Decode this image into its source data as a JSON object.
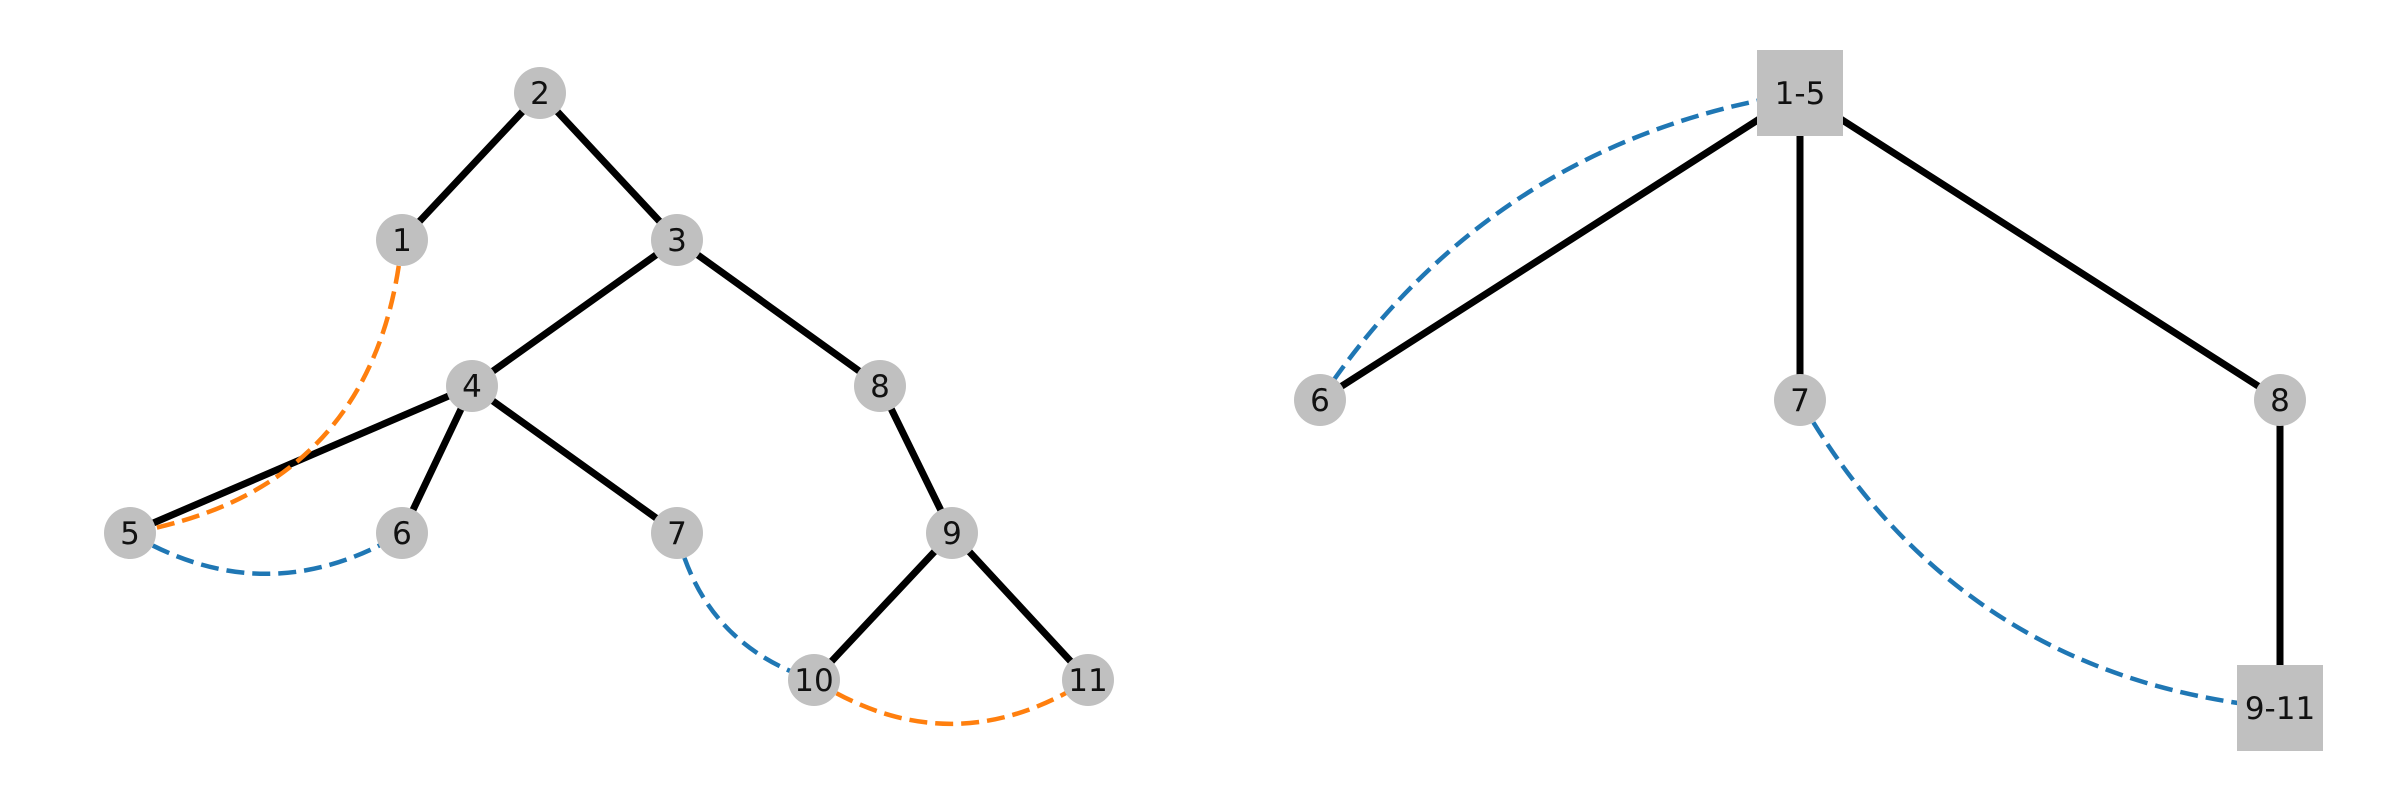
{
  "colors": {
    "node_fill": "#c0c0c0",
    "solid_edge": "#000000",
    "blue_dashed": "#1f77b4",
    "orange_dashed": "#ff7f0e"
  },
  "left_graph": {
    "nodes": [
      {
        "id": "1",
        "label": "1",
        "shape": "circle"
      },
      {
        "id": "2",
        "label": "2",
        "shape": "circle"
      },
      {
        "id": "3",
        "label": "3",
        "shape": "circle"
      },
      {
        "id": "4",
        "label": "4",
        "shape": "circle"
      },
      {
        "id": "5",
        "label": "5",
        "shape": "circle"
      },
      {
        "id": "6",
        "label": "6",
        "shape": "circle"
      },
      {
        "id": "7",
        "label": "7",
        "shape": "circle"
      },
      {
        "id": "8",
        "label": "8",
        "shape": "circle"
      },
      {
        "id": "9",
        "label": "9",
        "shape": "circle"
      },
      {
        "id": "10",
        "label": "10",
        "shape": "circle"
      },
      {
        "id": "11",
        "label": "11",
        "shape": "circle"
      }
    ],
    "edges": [
      {
        "from": "2",
        "to": "1",
        "style": "solid"
      },
      {
        "from": "2",
        "to": "3",
        "style": "solid"
      },
      {
        "from": "3",
        "to": "4",
        "style": "solid"
      },
      {
        "from": "3",
        "to": "8",
        "style": "solid"
      },
      {
        "from": "4",
        "to": "5",
        "style": "solid"
      },
      {
        "from": "4",
        "to": "6",
        "style": "solid"
      },
      {
        "from": "4",
        "to": "7",
        "style": "solid"
      },
      {
        "from": "8",
        "to": "9",
        "style": "solid"
      },
      {
        "from": "9",
        "to": "10",
        "style": "solid"
      },
      {
        "from": "9",
        "to": "11",
        "style": "solid"
      },
      {
        "from": "1",
        "to": "5",
        "style": "dashed",
        "color": "orange"
      },
      {
        "from": "5",
        "to": "6",
        "style": "dashed",
        "color": "blue"
      },
      {
        "from": "7",
        "to": "10",
        "style": "dashed",
        "color": "blue"
      },
      {
        "from": "10",
        "to": "11",
        "style": "dashed",
        "color": "orange"
      }
    ]
  },
  "right_graph": {
    "nodes": [
      {
        "id": "1-5",
        "label": "1-5",
        "shape": "square"
      },
      {
        "id": "6",
        "label": "6",
        "shape": "circle"
      },
      {
        "id": "7",
        "label": "7",
        "shape": "circle"
      },
      {
        "id": "8",
        "label": "8",
        "shape": "circle"
      },
      {
        "id": "9-11",
        "label": "9-11",
        "shape": "square"
      }
    ],
    "edges": [
      {
        "from": "1-5",
        "to": "6",
        "style": "solid"
      },
      {
        "from": "1-5",
        "to": "7",
        "style": "solid"
      },
      {
        "from": "1-5",
        "to": "8",
        "style": "solid"
      },
      {
        "from": "8",
        "to": "9-11",
        "style": "solid"
      },
      {
        "from": "1-5",
        "to": "6",
        "style": "dashed",
        "color": "blue"
      },
      {
        "from": "7",
        "to": "9-11",
        "style": "dashed",
        "color": "blue"
      }
    ]
  }
}
